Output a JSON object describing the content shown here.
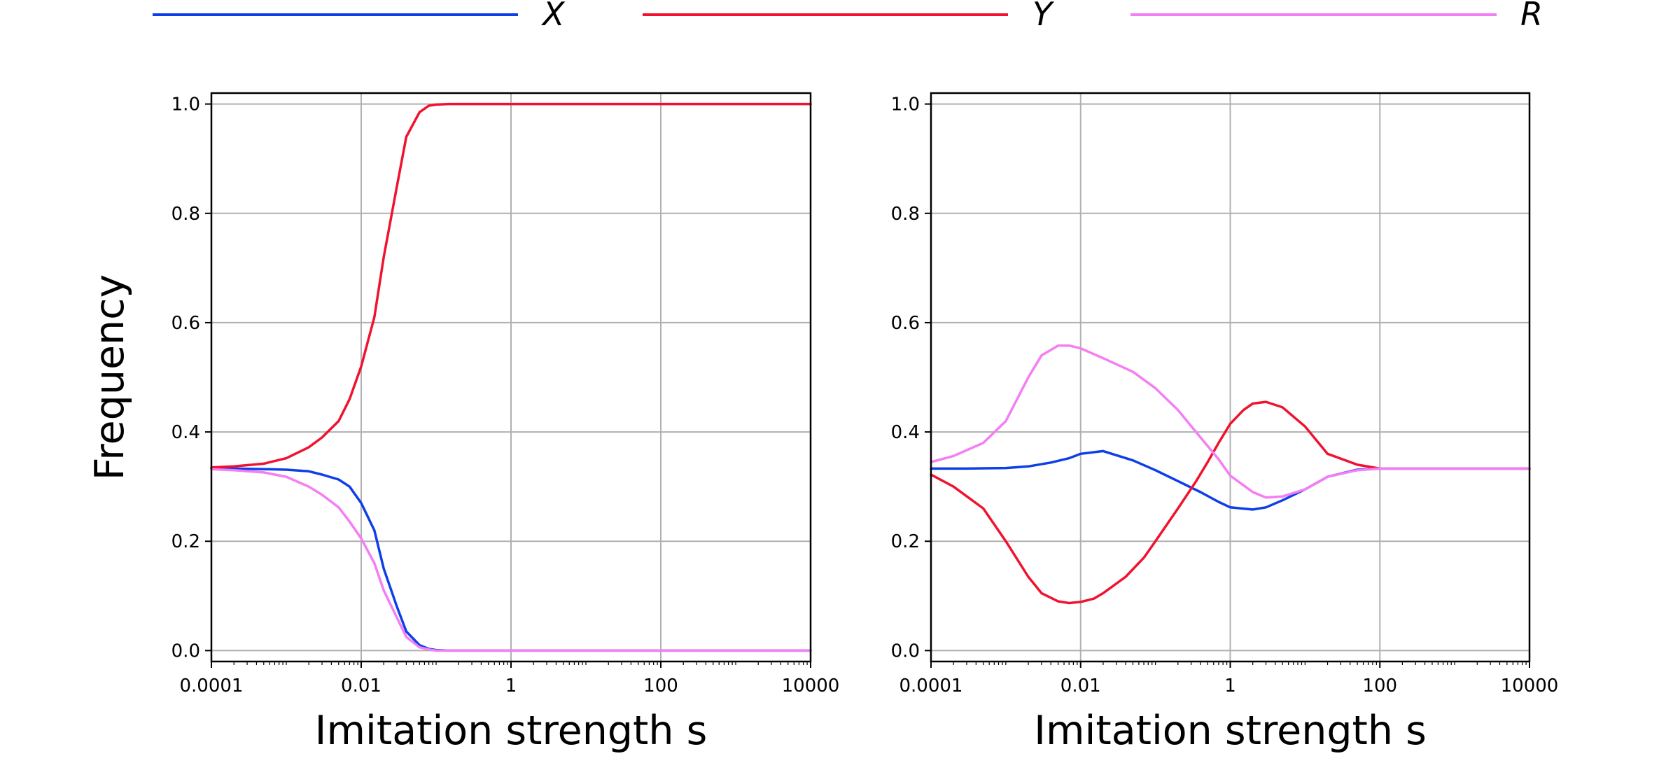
{
  "legend": {
    "placement": "top",
    "entries": [
      {
        "label": "X",
        "color": "#0d3fe8"
      },
      {
        "label": "Y",
        "color": "#f0122e"
      },
      {
        "label": "R",
        "color": "#f47ef4"
      }
    ]
  },
  "colors": {
    "X": "#0d3fe8",
    "Y": "#f0122e",
    "R": "#f47ef4",
    "grid": "#b0b0b0"
  },
  "chart_data": [
    {
      "type": "line",
      "x_scale": "log",
      "xlim": [
        0.0001,
        10000
      ],
      "ylim": [
        -0.02,
        1.02
      ],
      "grid": true,
      "xlabel": "Imitation strength s",
      "ylabel": "Frequency",
      "xticks": [
        0.0001,
        0.01,
        1,
        100,
        10000
      ],
      "xtick_labels": [
        "0.0001",
        "0.01",
        "1",
        "100",
        "10000"
      ],
      "yticks": [
        0.0,
        0.2,
        0.4,
        0.6,
        0.8,
        1.0
      ],
      "ytick_labels": [
        "0.0",
        "0.2",
        "0.4",
        "0.6",
        "0.8",
        "1.0"
      ],
      "series": [
        {
          "name": "X",
          "color": "#0d3fe8",
          "x": [
            0.0001,
            0.0002,
            0.0005,
            0.001,
            0.002,
            0.003,
            0.005,
            0.007,
            0.01,
            0.015,
            0.02,
            0.03,
            0.04,
            0.06,
            0.08,
            0.1,
            0.15,
            0.2,
            0.3,
            0.5,
            1,
            10,
            100,
            1000,
            10000
          ],
          "y": [
            0.333,
            0.333,
            0.332,
            0.331,
            0.328,
            0.322,
            0.313,
            0.3,
            0.27,
            0.22,
            0.15,
            0.08,
            0.035,
            0.01,
            0.003,
            0.001,
            0.0,
            0.0,
            0.0,
            0.0,
            0.0,
            0.0,
            0.0,
            0.0,
            0.0
          ]
        },
        {
          "name": "Y",
          "color": "#f0122e",
          "x": [
            0.0001,
            0.0002,
            0.0005,
            0.001,
            0.002,
            0.003,
            0.005,
            0.007,
            0.01,
            0.015,
            0.02,
            0.03,
            0.04,
            0.06,
            0.08,
            0.1,
            0.15,
            0.2,
            0.3,
            0.5,
            1,
            10,
            100,
            1000,
            10000
          ],
          "y": [
            0.335,
            0.337,
            0.342,
            0.352,
            0.372,
            0.39,
            0.42,
            0.46,
            0.52,
            0.61,
            0.72,
            0.85,
            0.94,
            0.985,
            0.997,
            0.999,
            1.0,
            1.0,
            1.0,
            1.0,
            1.0,
            1.0,
            1.0,
            1.0,
            1.0
          ]
        },
        {
          "name": "R",
          "color": "#f47ef4",
          "x": [
            0.0001,
            0.0002,
            0.0005,
            0.001,
            0.002,
            0.003,
            0.005,
            0.007,
            0.01,
            0.015,
            0.02,
            0.03,
            0.04,
            0.06,
            0.08,
            0.1,
            0.15,
            0.2,
            0.3,
            0.5,
            1,
            10,
            100,
            1000,
            10000
          ],
          "y": [
            0.332,
            0.33,
            0.326,
            0.318,
            0.3,
            0.285,
            0.262,
            0.236,
            0.205,
            0.16,
            0.11,
            0.06,
            0.025,
            0.006,
            0.002,
            0.0,
            0.0,
            0.0,
            0.0,
            0.0,
            0.0,
            0.0,
            0.0,
            0.0,
            0.0
          ]
        }
      ]
    },
    {
      "type": "line",
      "x_scale": "log",
      "xlim": [
        0.0001,
        10000
      ],
      "ylim": [
        -0.02,
        1.02
      ],
      "grid": true,
      "xlabel": "Imitation strength s",
      "ylabel": "",
      "xticks": [
        0.0001,
        0.01,
        1,
        100,
        10000
      ],
      "xtick_labels": [
        "0.0001",
        "0.01",
        "1",
        "100",
        "10000"
      ],
      "yticks": [
        0.0,
        0.2,
        0.4,
        0.6,
        0.8,
        1.0
      ],
      "ytick_labels": [
        "0.0",
        "0.2",
        "0.4",
        "0.6",
        "0.8",
        "1.0"
      ],
      "series": [
        {
          "name": "X",
          "color": "#0d3fe8",
          "x": [
            0.0001,
            0.0003,
            0.001,
            0.002,
            0.004,
            0.007,
            0.01,
            0.02,
            0.05,
            0.1,
            0.2,
            0.4,
            0.7,
            1,
            2,
            3,
            5,
            10,
            20,
            50,
            100,
            1000,
            10000
          ],
          "y": [
            0.333,
            0.333,
            0.334,
            0.337,
            0.344,
            0.352,
            0.36,
            0.365,
            0.348,
            0.33,
            0.31,
            0.29,
            0.272,
            0.262,
            0.258,
            0.262,
            0.275,
            0.295,
            0.318,
            0.331,
            0.333,
            0.333,
            0.333
          ]
        },
        {
          "name": "Y",
          "color": "#f0122e",
          "x": [
            0.0001,
            0.0002,
            0.0005,
            0.001,
            0.002,
            0.003,
            0.005,
            0.007,
            0.01,
            0.015,
            0.02,
            0.04,
            0.07,
            0.1,
            0.2,
            0.35,
            0.5,
            0.7,
            1,
            1.5,
            2,
            3,
            5,
            10,
            20,
            50,
            100,
            1000,
            10000
          ],
          "y": [
            0.322,
            0.3,
            0.26,
            0.2,
            0.135,
            0.105,
            0.09,
            0.087,
            0.089,
            0.095,
            0.105,
            0.135,
            0.17,
            0.2,
            0.26,
            0.31,
            0.345,
            0.38,
            0.415,
            0.44,
            0.452,
            0.455,
            0.445,
            0.41,
            0.36,
            0.34,
            0.333,
            0.333,
            0.333
          ]
        },
        {
          "name": "R",
          "color": "#f47ef4",
          "x": [
            0.0001,
            0.0002,
            0.0005,
            0.001,
            0.002,
            0.003,
            0.005,
            0.007,
            0.01,
            0.02,
            0.05,
            0.1,
            0.2,
            0.4,
            0.7,
            1,
            2,
            3,
            5,
            10,
            20,
            50,
            100,
            1000,
            10000
          ],
          "y": [
            0.345,
            0.356,
            0.38,
            0.42,
            0.5,
            0.54,
            0.558,
            0.558,
            0.553,
            0.535,
            0.51,
            0.48,
            0.44,
            0.39,
            0.35,
            0.32,
            0.29,
            0.28,
            0.282,
            0.295,
            0.318,
            0.33,
            0.333,
            0.333,
            0.333
          ]
        }
      ]
    }
  ]
}
